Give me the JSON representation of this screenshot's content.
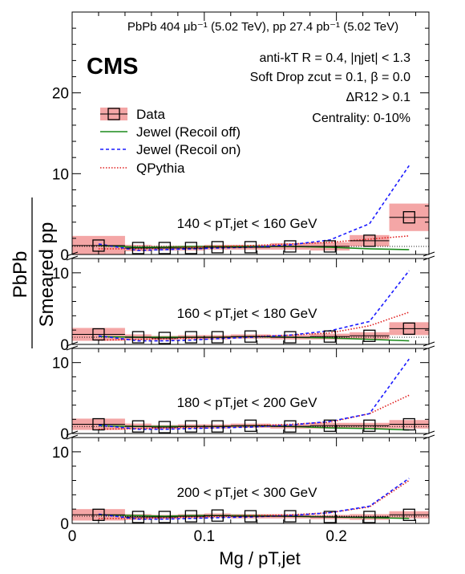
{
  "header": {
    "lumi": "PbPb 404 μb⁻¹ (5.02 TeV), pp 27.4 pb⁻¹ (5.02 TeV)",
    "experiment": "CMS",
    "info": [
      "anti-kT R = 0.4, |ηjet| < 1.3",
      "Soft Drop zcut = 0.1, β = 0.0",
      "ΔR12 > 0.1",
      "Centrality: 0-10%"
    ]
  },
  "legend": {
    "placement": "top-left",
    "entries": [
      "Data",
      "Jewel (Recoil off)",
      "Jewel (Recoil on)",
      "QPythia"
    ]
  },
  "axes": {
    "xlabel": "Mg / pT,jet",
    "ylabel_num": "PbPb",
    "ylabel_den": "Smeared pp",
    "xticks": [
      "0",
      "0.1",
      "0.2"
    ],
    "yticks_top": [
      "0",
      "10",
      "20"
    ],
    "yticks_lower": [
      "0",
      "10"
    ]
  },
  "colors": {
    "data_band": "#f4a6a6",
    "jewel_off": "#1a8a1a",
    "jewel_on": "#1a1aff",
    "qpythia": "#e02020"
  },
  "chart_data": [
    {
      "type": "line",
      "panel_label": "140 < pT,jet < 160 GeV",
      "xlim": [
        0,
        0.27
      ],
      "ylim": [
        0,
        30
      ],
      "data_x": [
        0.02,
        0.05,
        0.07,
        0.09,
        0.11,
        0.135,
        0.165,
        0.195,
        0.225,
        0.255
      ],
      "data_y": [
        1.1,
        0.8,
        0.8,
        0.8,
        0.9,
        0.9,
        1.0,
        1.0,
        1.7,
        4.6
      ],
      "band_x": [
        [
          0,
          0.04
        ],
        [
          0.04,
          0.06
        ],
        [
          0.06,
          0.08
        ],
        [
          0.08,
          0.1
        ],
        [
          0.1,
          0.12
        ],
        [
          0.12,
          0.15
        ],
        [
          0.15,
          0.18
        ],
        [
          0.18,
          0.21
        ],
        [
          0.21,
          0.24
        ],
        [
          0.24,
          0.27
        ]
      ],
      "band_err": [
        1.2,
        0.4,
        0.3,
        0.3,
        0.3,
        0.3,
        0.4,
        0.5,
        0.7,
        1.7
      ],
      "jewel_off": {
        "x": [
          0.02,
          0.05,
          0.07,
          0.09,
          0.11,
          0.135,
          0.165,
          0.195,
          0.225,
          0.255
        ],
        "y": [
          1.1,
          0.9,
          0.9,
          1.0,
          1.0,
          1.0,
          1.0,
          0.9,
          0.7,
          0.6
        ]
      },
      "jewel_on": {
        "x": [
          0.02,
          0.05,
          0.07,
          0.09,
          0.11,
          0.135,
          0.165,
          0.195,
          0.225,
          0.255
        ],
        "y": [
          1.3,
          0.5,
          0.6,
          0.7,
          0.8,
          0.9,
          1.2,
          1.8,
          3.8,
          11.0
        ]
      },
      "qpythia": {
        "x": [
          0.02,
          0.05,
          0.07,
          0.09,
          0.11,
          0.135,
          0.165,
          0.195,
          0.225,
          0.255
        ],
        "y": [
          0.7,
          0.7,
          0.8,
          0.9,
          1.0,
          1.1,
          1.3,
          1.5,
          1.9,
          2.3
        ]
      }
    },
    {
      "type": "line",
      "panel_label": "160 < pT,jet < 180 GeV",
      "xlim": [
        0,
        0.27
      ],
      "ylim": [
        0,
        12
      ],
      "data_x": [
        0.02,
        0.05,
        0.07,
        0.09,
        0.11,
        0.135,
        0.165,
        0.195,
        0.225,
        0.255
      ],
      "data_y": [
        1.4,
        1.0,
        0.9,
        1.0,
        1.0,
        1.1,
        1.0,
        1.1,
        1.2,
        2.2
      ],
      "band_x": [
        [
          0,
          0.04
        ],
        [
          0.04,
          0.06
        ],
        [
          0.06,
          0.08
        ],
        [
          0.08,
          0.1
        ],
        [
          0.1,
          0.12
        ],
        [
          0.12,
          0.15
        ],
        [
          0.15,
          0.18
        ],
        [
          0.18,
          0.21
        ],
        [
          0.21,
          0.24
        ],
        [
          0.24,
          0.27
        ]
      ],
      "band_err": [
        0.9,
        0.4,
        0.3,
        0.3,
        0.3,
        0.3,
        0.3,
        0.4,
        0.5,
        0.9
      ],
      "jewel_off": {
        "x": [
          0.02,
          0.05,
          0.07,
          0.09,
          0.11,
          0.135,
          0.165,
          0.195,
          0.225,
          0.255
        ],
        "y": [
          1.1,
          1.0,
          1.0,
          1.0,
          1.0,
          1.1,
          1.0,
          0.9,
          0.7,
          0.5
        ]
      },
      "jewel_on": {
        "x": [
          0.02,
          0.05,
          0.07,
          0.09,
          0.11,
          0.135,
          0.165,
          0.195,
          0.225,
          0.255
        ],
        "y": [
          1.2,
          0.5,
          0.5,
          0.6,
          0.8,
          1.0,
          1.3,
          1.9,
          3.2,
          10.3
        ]
      },
      "qpythia": {
        "x": [
          0.02,
          0.05,
          0.07,
          0.09,
          0.11,
          0.135,
          0.165,
          0.195,
          0.225,
          0.255
        ],
        "y": [
          0.6,
          0.7,
          0.8,
          0.9,
          1.0,
          1.1,
          1.3,
          1.6,
          2.6,
          4.5
        ]
      }
    },
    {
      "type": "line",
      "panel_label": "180 < pT,jet < 200 GeV",
      "xlim": [
        0,
        0.27
      ],
      "ylim": [
        0,
        12
      ],
      "data_x": [
        0.02,
        0.05,
        0.07,
        0.09,
        0.11,
        0.135,
        0.165,
        0.195,
        0.225,
        0.255
      ],
      "data_y": [
        1.3,
        1.0,
        0.9,
        1.0,
        1.0,
        1.1,
        1.0,
        1.1,
        1.1,
        1.3
      ],
      "band_x": [
        [
          0,
          0.04
        ],
        [
          0.04,
          0.06
        ],
        [
          0.06,
          0.08
        ],
        [
          0.08,
          0.1
        ],
        [
          0.1,
          0.12
        ],
        [
          0.12,
          0.15
        ],
        [
          0.15,
          0.18
        ],
        [
          0.18,
          0.21
        ],
        [
          0.21,
          0.24
        ],
        [
          0.24,
          0.27
        ]
      ],
      "band_err": [
        0.8,
        0.4,
        0.3,
        0.3,
        0.3,
        0.3,
        0.3,
        0.4,
        0.4,
        0.6
      ],
      "jewel_off": {
        "x": [
          0.02,
          0.05,
          0.07,
          0.09,
          0.11,
          0.135,
          0.165,
          0.195,
          0.225,
          0.255
        ],
        "y": [
          1.1,
          1.0,
          1.0,
          1.0,
          1.0,
          1.1,
          1.0,
          0.8,
          0.7,
          0.5
        ]
      },
      "jewel_on": {
        "x": [
          0.02,
          0.05,
          0.07,
          0.09,
          0.11,
          0.135,
          0.165,
          0.195,
          0.225,
          0.255
        ],
        "y": [
          1.2,
          0.6,
          0.6,
          0.7,
          0.8,
          0.9,
          1.2,
          1.7,
          2.8,
          10.5
        ]
      },
      "qpythia": {
        "x": [
          0.02,
          0.05,
          0.07,
          0.09,
          0.11,
          0.135,
          0.165,
          0.195,
          0.225,
          0.255
        ],
        "y": [
          0.6,
          0.7,
          0.8,
          0.9,
          1.0,
          1.1,
          1.3,
          1.6,
          2.8,
          5.4
        ]
      }
    },
    {
      "type": "line",
      "panel_label": "200 < pT,jet < 300 GeV",
      "xlim": [
        0,
        0.27
      ],
      "ylim": [
        0,
        12
      ],
      "data_x": [
        0.02,
        0.05,
        0.07,
        0.09,
        0.11,
        0.135,
        0.165,
        0.195,
        0.225,
        0.255
      ],
      "data_y": [
        1.2,
        0.9,
        0.9,
        1.0,
        1.1,
        1.0,
        1.0,
        0.9,
        0.9,
        1.2
      ],
      "band_x": [
        [
          0,
          0.04
        ],
        [
          0.04,
          0.06
        ],
        [
          0.06,
          0.08
        ],
        [
          0.08,
          0.1
        ],
        [
          0.1,
          0.12
        ],
        [
          0.12,
          0.15
        ],
        [
          0.15,
          0.18
        ],
        [
          0.18,
          0.21
        ],
        [
          0.21,
          0.24
        ],
        [
          0.24,
          0.27
        ]
      ],
      "band_err": [
        0.8,
        0.4,
        0.3,
        0.3,
        0.3,
        0.3,
        0.3,
        0.3,
        0.4,
        0.5
      ],
      "jewel_off": {
        "x": [
          0.02,
          0.05,
          0.07,
          0.09,
          0.11,
          0.135,
          0.165,
          0.195,
          0.225,
          0.255
        ],
        "y": [
          1.2,
          1.1,
          1.0,
          1.1,
          1.1,
          1.1,
          1.0,
          0.9,
          0.8,
          0.7
        ]
      },
      "jewel_on": {
        "x": [
          0.02,
          0.05,
          0.07,
          0.09,
          0.11,
          0.135,
          0.165,
          0.195,
          0.225,
          0.255
        ],
        "y": [
          1.3,
          0.6,
          0.6,
          0.7,
          0.8,
          0.9,
          1.1,
          1.5,
          2.4,
          6.3
        ]
      },
      "qpythia": {
        "x": [
          0.02,
          0.05,
          0.07,
          0.09,
          0.11,
          0.135,
          0.165,
          0.195,
          0.225,
          0.255
        ],
        "y": [
          0.7,
          0.7,
          0.8,
          0.9,
          1.0,
          1.1,
          1.2,
          1.5,
          2.3,
          6.0
        ]
      }
    }
  ]
}
